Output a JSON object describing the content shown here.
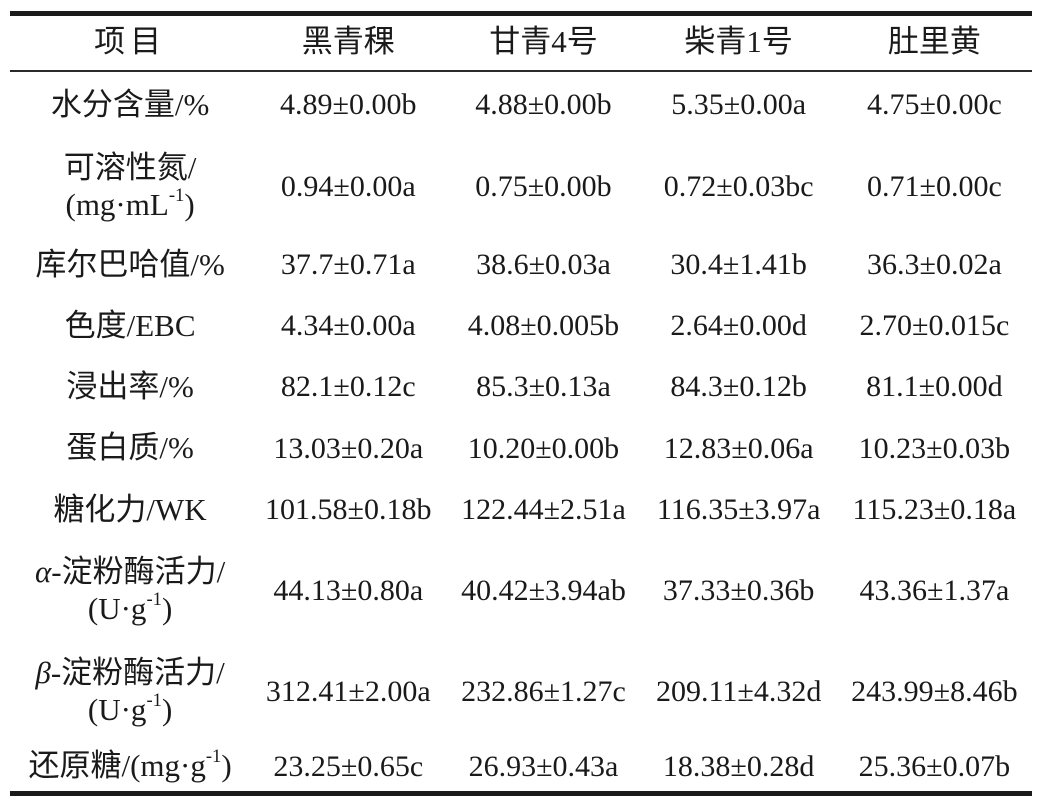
{
  "table": {
    "headers": [
      "项目",
      "黑青稞",
      "甘青4号",
      "柴青1号",
      "肚里黄"
    ],
    "rows": [
      {
        "label": "水分含量/%",
        "values": [
          "4.89±0.00b",
          "4.88±0.00b",
          "5.35±0.00a",
          "4.75±0.00c"
        ]
      },
      {
        "label": "可溶性氮/",
        "unit_pre": "(mg·mL",
        "unit_sup": "-1",
        "unit_post": ")",
        "values": [
          "0.94±0.00a",
          "0.75±0.00b",
          "0.72±0.03bc",
          "0.71±0.00c"
        ]
      },
      {
        "label": "库尔巴哈值/%",
        "values": [
          "37.7±0.71a",
          "38.6±0.03a",
          "30.4±1.41b",
          "36.3±0.02a"
        ]
      },
      {
        "label": "色度/EBC",
        "values": [
          "4.34±0.00a",
          "4.08±0.005b",
          "2.64±0.00d",
          "2.70±0.015c"
        ]
      },
      {
        "label": "浸出率/%",
        "values": [
          "82.1±0.12c",
          "85.3±0.13a",
          "84.3±0.12b",
          "81.1±0.00d"
        ]
      },
      {
        "label": "蛋白质/%",
        "values": [
          "13.03±0.20a",
          "10.20±0.00b",
          "12.83±0.06a",
          "10.23±0.03b"
        ]
      },
      {
        "label": "糖化力/WK",
        "values": [
          "101.58±0.18b",
          "122.44±2.51a",
          "116.35±3.97a",
          "115.23±0.18a"
        ]
      },
      {
        "greek": "α",
        "label": "-淀粉酶活力/",
        "unit_pre": "(U·g",
        "unit_sup": "-1",
        "unit_post": ")",
        "values": [
          "44.13±0.80a",
          "40.42±3.94ab",
          "37.33±0.36b",
          "43.36±1.37a"
        ]
      },
      {
        "greek": "β",
        "label": "-淀粉酶活力/",
        "unit_pre": "(U·g",
        "unit_sup": "-1",
        "unit_post": ")",
        "values": [
          "312.41±2.00a",
          "232.86±1.27c",
          "209.11±4.32d",
          "243.99±8.46b"
        ]
      },
      {
        "label_pre": "还原糖/(mg·g",
        "label_sup": "-1",
        "label_post": ")",
        "values": [
          "23.25±0.65c",
          "26.93±0.43a",
          "18.38±0.28d",
          "25.36±0.07b"
        ]
      }
    ]
  }
}
